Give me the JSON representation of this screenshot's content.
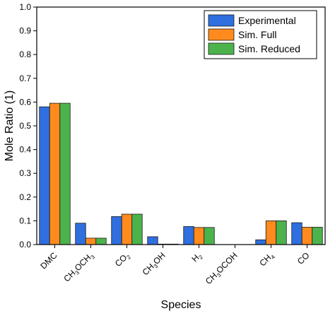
{
  "chart_data": {
    "type": "bar",
    "categories": [
      "DMC",
      "CH3OCH3",
      "CO2",
      "CH3OH",
      "H2",
      "CH3OCOH",
      "CH4",
      "CO"
    ],
    "category_parts": [
      [
        [
          "DMC",
          false
        ]
      ],
      [
        [
          "CH",
          false
        ],
        [
          "3",
          true
        ],
        [
          "OCH",
          false
        ],
        [
          "3",
          true
        ]
      ],
      [
        [
          "CO",
          false
        ],
        [
          "2",
          true
        ]
      ],
      [
        [
          "CH",
          false
        ],
        [
          "3",
          true
        ],
        [
          "OH",
          false
        ]
      ],
      [
        [
          "H",
          false
        ],
        [
          "2",
          true
        ]
      ],
      [
        [
          "CH",
          false
        ],
        [
          "3",
          true
        ],
        [
          "OCOH",
          false
        ]
      ],
      [
        [
          "CH",
          false
        ],
        [
          "4",
          true
        ]
      ],
      [
        [
          "CO",
          false
        ]
      ]
    ],
    "series": [
      {
        "name": "Experimental",
        "color": "#2f6fe0",
        "values": [
          0.58,
          0.09,
          0.118,
          0.033,
          0.076,
          0.0,
          0.02,
          0.092
        ]
      },
      {
        "name": "Sim. Full",
        "color": "#ff8b1f",
        "values": [
          0.595,
          0.027,
          0.128,
          0.002,
          0.072,
          0.0,
          0.1,
          0.073
        ]
      },
      {
        "name": "Sim. Reduced",
        "color": "#4cb34c",
        "values": [
          0.595,
          0.027,
          0.128,
          0.002,
          0.072,
          0.0,
          0.1,
          0.073
        ]
      }
    ],
    "xlabel": "Species",
    "ylabel": "Mole Ratio (1)",
    "ylim": [
      0,
      1.0
    ],
    "yticks": [
      "0.0",
      "0.1",
      "0.2",
      "0.3",
      "0.4",
      "0.5",
      "0.6",
      "0.7",
      "0.8",
      "0.9",
      "1.0"
    ],
    "grid": false,
    "legend_position": "top-right"
  }
}
